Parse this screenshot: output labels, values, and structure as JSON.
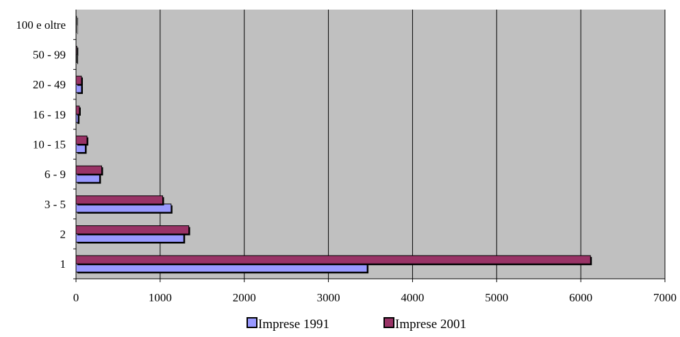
{
  "chart_data": {
    "type": "bar",
    "orientation": "horizontal",
    "categories": [
      "1",
      "2",
      "3 - 5",
      "6 - 9",
      "10 - 15",
      "16 - 19",
      "20 - 49",
      "50 - 99",
      "100 e oltre"
    ],
    "series": [
      {
        "name": "Imprese 1991",
        "color": "#9999ff",
        "values": [
          3460,
          1280,
          1130,
          280,
          110,
          25,
          65,
          8,
          4
        ]
      },
      {
        "name": "Imprese 2001",
        "color": "#993366",
        "values": [
          6115,
          1340,
          1030,
          305,
          130,
          40,
          65,
          10,
          6
        ]
      }
    ],
    "xlim": [
      0,
      7000
    ],
    "xticks": [
      0,
      1000,
      2000,
      3000,
      4000,
      5000,
      6000,
      7000
    ],
    "title": "",
    "xlabel": "",
    "ylabel": "",
    "grid": "vertical",
    "plot_background": "#c0c0c0",
    "legend_position": "bottom"
  }
}
